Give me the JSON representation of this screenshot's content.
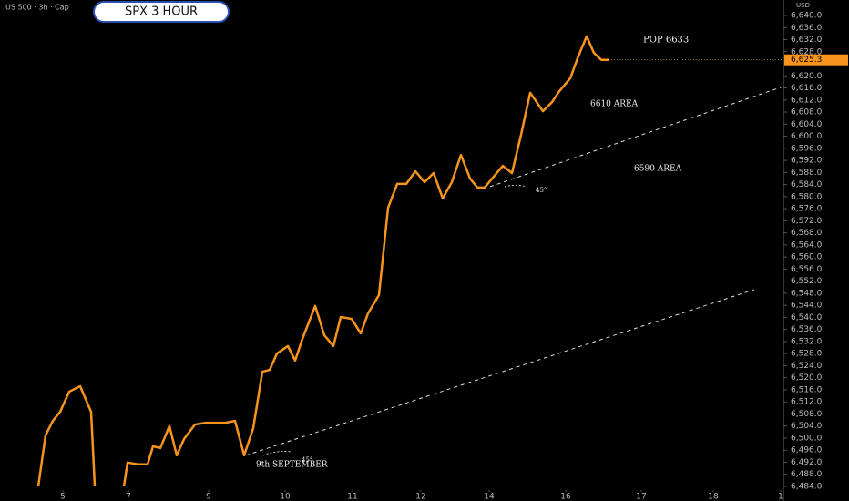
{
  "chart_data": {
    "type": "line",
    "header": "US 500 · 3h · Cap",
    "title": "SPX 3 HOUR",
    "currency": "USD",
    "color": "#f7941d",
    "x": [
      4.2,
      5.0,
      5.8,
      6.6,
      7.6,
      8.8,
      10.0,
      10.5,
      13.3,
      14.0,
      15.2,
      16.2,
      16.8,
      17.6,
      18.6,
      19.4,
      20.2,
      21.4,
      22.6,
      24.8,
      25.8,
      26.8,
      27.8,
      28.8,
      29.6,
      30.4,
      31.6,
      32.4,
      33.2,
      34.6,
      35.6,
      36.6,
      37.4,
      38.6,
      39.6,
      40.4,
      41.6,
      42.6,
      43.6,
      44.6,
      45.6,
      46.6,
      47.6,
      48.6,
      49.6,
      50.6,
      51.6,
      52.4,
      53.2,
      54.2,
      55.2,
      56.2,
      57.2,
      58.2,
      59.6,
      60.6,
      61.4,
      62.6,
      63.4,
      64.4,
      65.2,
      66.0,
      66.8
    ],
    "values": [
      6484,
      6500.9,
      6505.7,
      6508.7,
      6515.4,
      6517.2,
      6508.7,
      6478,
      6478,
      6491.9,
      6491.3,
      6491.3,
      6497.3,
      6496.7,
      6504,
      6494.3,
      6499.7,
      6504.5,
      6505.1,
      6505.1,
      6505.7,
      6494.3,
      6503.3,
      6522,
      6522.6,
      6528,
      6530.5,
      6525.7,
      6532.9,
      6543.8,
      6534.1,
      6530.5,
      6540.1,
      6539.5,
      6534.7,
      6541.3,
      6547.4,
      6576.3,
      6584.2,
      6584.2,
      6588.4,
      6584.8,
      6587.8,
      6579.4,
      6584.8,
      6593.8,
      6586,
      6583,
      6583,
      6586.6,
      6590.2,
      6587.8,
      6600.5,
      6614.4,
      6608.3,
      6611.3,
      6614.9,
      6619.2,
      6625.8,
      6633.1,
      6627.6,
      6625.3,
      6625.3
    ],
    "last_price": {
      "value": 6625.3,
      "label": "6,625.3"
    },
    "trendlines": [
      {
        "x": [
          53.8,
          86
        ],
        "values": [
          6583.3,
          6616.5
        ]
      },
      {
        "x": [
          27,
          82.8
        ],
        "values": [
          6494.3,
          6549.2
        ]
      }
    ],
    "annotations": [
      "POP 6633",
      "6610 AREA",
      "6590 AREA",
      "45°",
      "45°",
      "9th SEPTEMBER"
    ],
    "xlim": [
      0,
      86
    ],
    "xticks": [
      {
        "value": 6.9,
        "label": "5"
      },
      {
        "value": 14.1,
        "label": "7"
      },
      {
        "value": 22.9,
        "label": "9"
      },
      {
        "value": 31.3,
        "label": "10"
      },
      {
        "value": 38.7,
        "label": "11"
      },
      {
        "value": 46.2,
        "label": "12"
      },
      {
        "value": 53.7,
        "label": "14"
      },
      {
        "value": 62.1,
        "label": "16"
      },
      {
        "value": 70.4,
        "label": "17"
      },
      {
        "value": 78.3,
        "label": "18"
      },
      {
        "value": 85.7,
        "label": "1"
      }
    ],
    "ylim": [
      6484,
      6640
    ],
    "yticks": [
      {
        "value": 6640,
        "label": "6,640.0"
      },
      {
        "value": 6636,
        "label": "6,636.0"
      },
      {
        "value": 6632,
        "label": "6,632.0"
      },
      {
        "value": 6628,
        "label": "6,628.0"
      },
      {
        "value": 6620,
        "label": "6,620.0"
      },
      {
        "value": 6616,
        "label": "6,616.0"
      },
      {
        "value": 6612,
        "label": "6,612.0"
      },
      {
        "value": 6608,
        "label": "6,608.0"
      },
      {
        "value": 6604,
        "label": "6,604.0"
      },
      {
        "value": 6600,
        "label": "6,600.0"
      },
      {
        "value": 6596,
        "label": "6,596.0"
      },
      {
        "value": 6592,
        "label": "6,592.0"
      },
      {
        "value": 6588,
        "label": "6,588.0"
      },
      {
        "value": 6584,
        "label": "6,584.0"
      },
      {
        "value": 6580,
        "label": "6,580.0"
      },
      {
        "value": 6576,
        "label": "6,576.0"
      },
      {
        "value": 6572,
        "label": "6,572.0"
      },
      {
        "value": 6568,
        "label": "6,568.0"
      },
      {
        "value": 6564,
        "label": "6,564.0"
      },
      {
        "value": 6560,
        "label": "6,560.0"
      },
      {
        "value": 6556,
        "label": "6,556.0"
      },
      {
        "value": 6552,
        "label": "6,552.0"
      },
      {
        "value": 6548,
        "label": "6,548.0"
      },
      {
        "value": 6544,
        "label": "6,544.0"
      },
      {
        "value": 6540,
        "label": "6,540.0"
      },
      {
        "value": 6536,
        "label": "6,536.0"
      },
      {
        "value": 6532,
        "label": "6,532.0"
      },
      {
        "value": 6528,
        "label": "6,528.0"
      },
      {
        "value": 6524,
        "label": "6,524.0"
      },
      {
        "value": 6520,
        "label": "6,520.0"
      },
      {
        "value": 6516,
        "label": "6,516.0"
      },
      {
        "value": 6512,
        "label": "6,512.0"
      },
      {
        "value": 6508,
        "label": "6,508.0"
      },
      {
        "value": 6504,
        "label": "6,504.0"
      },
      {
        "value": 6500,
        "label": "6,500.0"
      },
      {
        "value": 6496,
        "label": "6,496.0"
      },
      {
        "value": 6492,
        "label": "6,492.0"
      },
      {
        "value": 6488,
        "label": "6,488.0"
      },
      {
        "value": 6484,
        "label": "6,484.0"
      }
    ]
  }
}
